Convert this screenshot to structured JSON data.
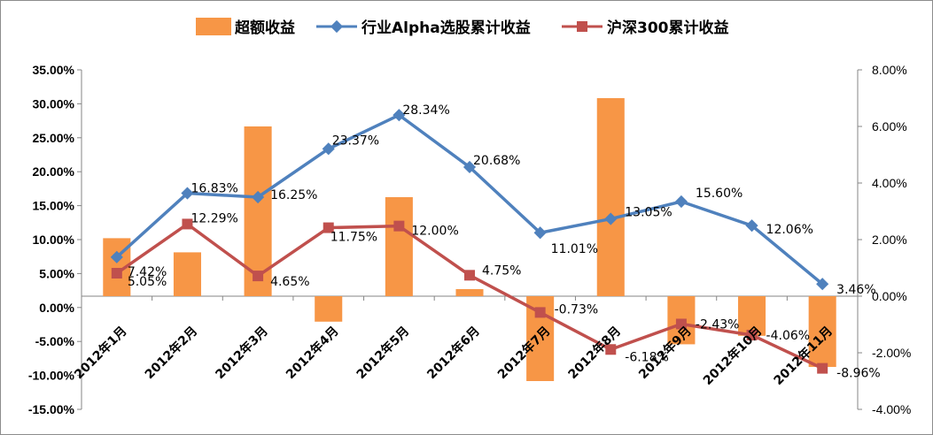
{
  "chart_data": {
    "type": "bar+line",
    "categories": [
      "2012年1月",
      "2012年2月",
      "2012年3月",
      "2012年4月",
      "2012年5月",
      "2012年6月",
      "2012年7月",
      "2012年8月",
      "2012年9月",
      "2012年10月",
      "2012年11月"
    ],
    "series": [
      {
        "name": "超额收益",
        "type": "bar",
        "axis": "right",
        "color": "#F79646",
        "values": [
          2.05,
          1.55,
          6.0,
          -0.9,
          3.5,
          0.25,
          -3.0,
          7.0,
          -1.7,
          -1.4,
          -2.5
        ]
      },
      {
        "name": "行业Alpha选股累计收益",
        "type": "line",
        "axis": "left",
        "color": "#4F81BD",
        "values": [
          7.42,
          16.83,
          16.25,
          23.37,
          28.34,
          20.68,
          11.01,
          13.05,
          15.6,
          12.06,
          3.46
        ],
        "labels": [
          "7.42%",
          "16.83%",
          "16.25%",
          "23.37%",
          "28.34%",
          "20.68%",
          "11.01%",
          "13.05%",
          "15.60%",
          "12.06%",
          "3.46%"
        ]
      },
      {
        "name": "沪深300累计收益",
        "type": "line",
        "axis": "left",
        "color": "#C0504D",
        "values": [
          5.05,
          12.29,
          4.65,
          11.75,
          12.0,
          4.75,
          -0.73,
          -6.18,
          -2.43,
          -4.06,
          -8.96
        ],
        "labels": [
          "5.05%",
          "12.29%",
          "4.65%",
          "11.75%",
          "12.00%",
          "4.75%",
          "-0.73%",
          "-6.18%",
          "-2.43%",
          "-4.06%",
          "-8.96%"
        ]
      }
    ],
    "y_left": {
      "min": -15,
      "max": 35,
      "step": 5,
      "ticks": [
        "35.00%",
        "30.00%",
        "25.00%",
        "20.00%",
        "15.00%",
        "10.00%",
        "5.00%",
        "0.00%",
        "-5.00%",
        "-10.00%",
        "-15.00%"
      ]
    },
    "y_right": {
      "min": -4,
      "max": 8,
      "step": 2,
      "ticks": [
        "8.00%",
        "6.00%",
        "4.00%",
        "2.00%",
        "0.00%",
        "-2.00%",
        "-4.00%"
      ]
    },
    "legend_position": "top",
    "grid": false,
    "title": ""
  }
}
